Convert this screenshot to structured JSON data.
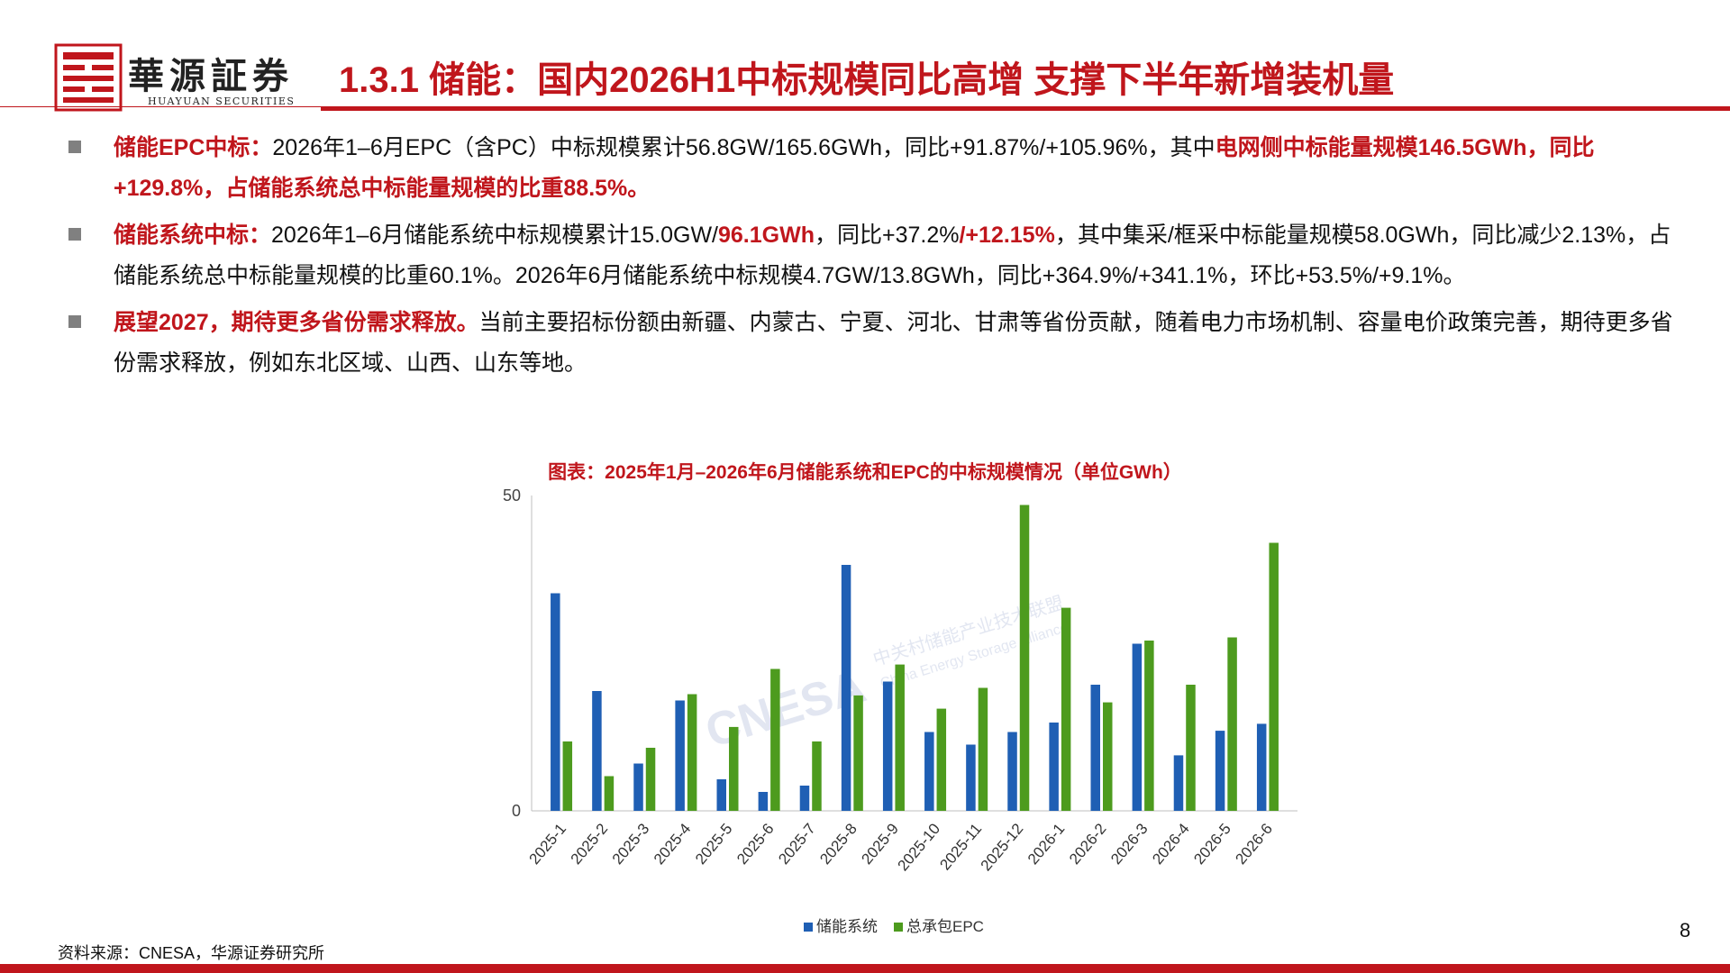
{
  "header": {
    "logo_cn": "華源証券",
    "logo_en": "HUAYUAN SECURITIES",
    "title": "1.3.1 储能：国内2026H1中标规模同比高增  支撑下半年新增装机量"
  },
  "bullets": [
    {
      "segments": [
        {
          "text": "储能EPC中标：",
          "hl": true
        },
        {
          "text": "2026年1–6月EPC（含PC）中标规模累计56.8GW/165.6GWh，同比+91.87%/+105.96%，其中",
          "hl": false
        },
        {
          "text": "电网侧中标能量规模146.5GWh，同比+129.8%，占储能系统总中标能量规模的比重88.5%。",
          "hl": true
        }
      ]
    },
    {
      "segments": [
        {
          "text": "储能系统中标：",
          "hl": true
        },
        {
          "text": "2026年1–6月储能系统中标规模累计15.0GW/",
          "hl": false
        },
        {
          "text": "96.1GWh",
          "hl": true
        },
        {
          "text": "，同比+37.2%",
          "hl": false
        },
        {
          "text": "/+12.15%",
          "hl": true
        },
        {
          "text": "，其中集采/框采中标能量规模58.0GWh，同比减少2.13%，占储能系统总中标能量规模的比重60.1%。2026年6月储能系统中标规模4.7GW/13.8GWh，同比+364.9%/+341.1%，环比+53.5%/+9.1%。",
          "hl": false
        }
      ]
    },
    {
      "segments": [
        {
          "text": "展望2027，期待更多省份需求释放。",
          "hl": true
        },
        {
          "text": "当前主要招标份额由新疆、内蒙古、宁夏、河北、甘肃等省份贡献，随着电力市场机制、容量电价政策完善，期待更多省份需求释放，例如东北区域、山西、山东等地。",
          "hl": false
        }
      ]
    }
  ],
  "chart_data": {
    "type": "bar",
    "title": "图表：2025年1月–2026年6月储能系统和EPC的中标规模情况（单位GWh）",
    "categories": [
      "2025-1",
      "2025-2",
      "2025-3",
      "2025-4",
      "2025-5",
      "2025-6",
      "2025-7",
      "2025-8",
      "2025-9",
      "2025-10",
      "2025-11",
      "2025-12",
      "2026-1",
      "2026-2",
      "2026-3",
      "2026-4",
      "2026-5",
      "2026-6"
    ],
    "series": [
      {
        "name": "储能系统",
        "color": "#1f5fb4",
        "values": [
          34.5,
          19.0,
          7.5,
          17.5,
          5.0,
          3.0,
          4.0,
          39.0,
          20.5,
          12.5,
          10.5,
          12.5,
          14.0,
          20.0,
          26.5,
          8.8,
          12.7,
          13.8
        ]
      },
      {
        "name": "总承包EPC",
        "color": "#4d9b1e",
        "values": [
          11.0,
          5.5,
          10.0,
          18.5,
          13.3,
          22.5,
          11.0,
          18.3,
          23.2,
          16.2,
          19.5,
          48.5,
          32.2,
          17.2,
          27.0,
          20.0,
          27.5,
          42.5
        ]
      }
    ],
    "yticks": [
      0,
      50
    ],
    "ylim": [
      0,
      50
    ],
    "legend_position": "bottom-center",
    "watermark": {
      "main": "CNESA",
      "line1": "中关村储能产业技术联盟",
      "line2": "China Energy Storage Alliance"
    }
  },
  "footer": {
    "source": "资料来源：CNESA，华源证券研究所",
    "page": "8"
  }
}
